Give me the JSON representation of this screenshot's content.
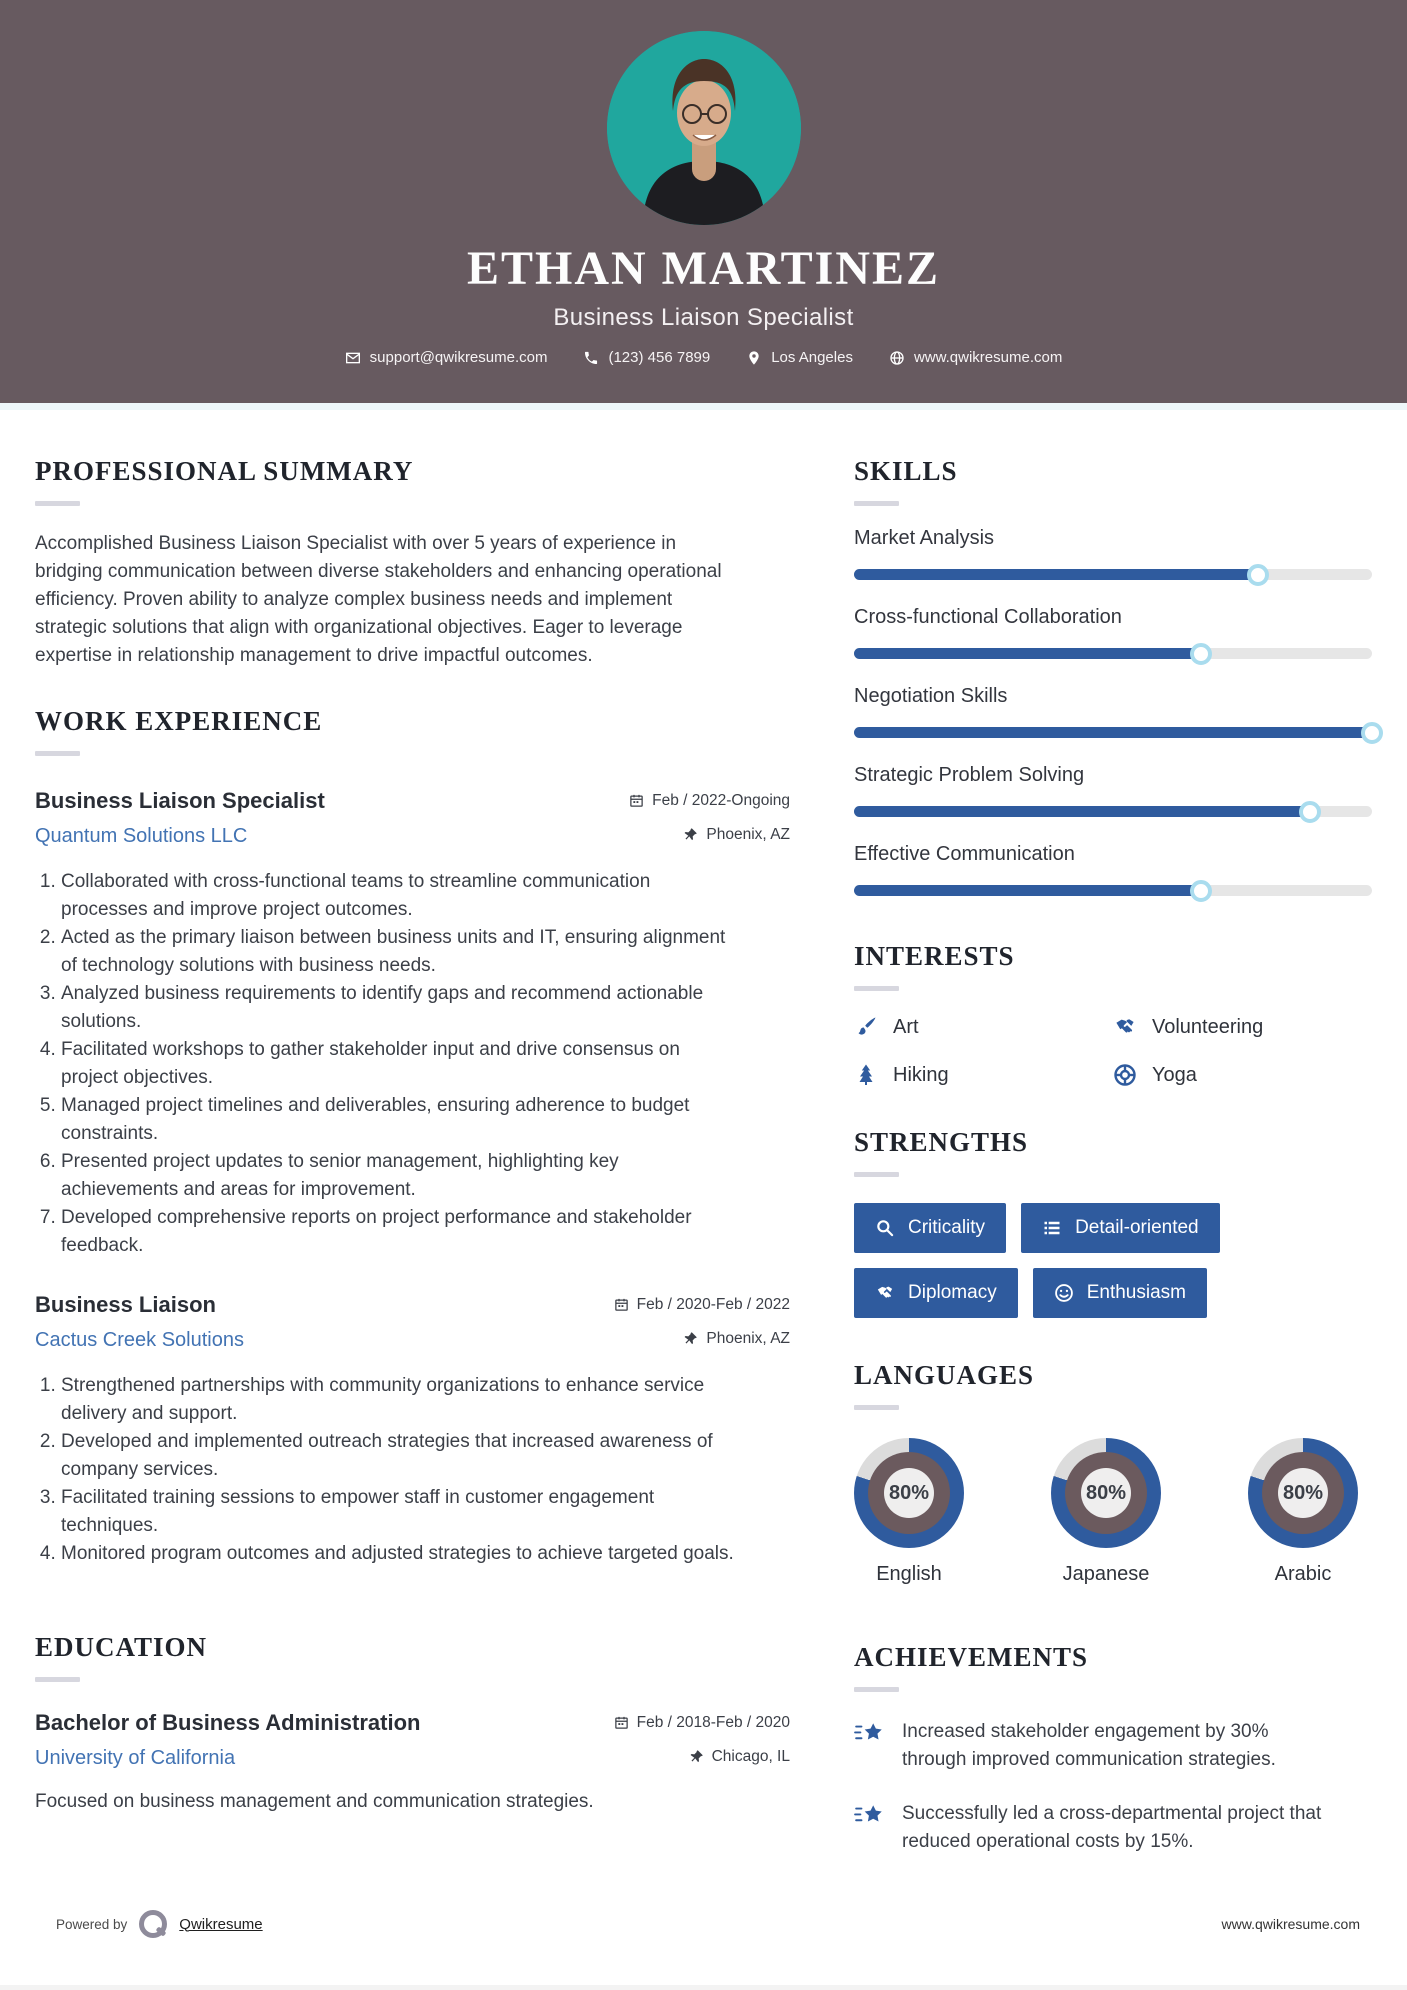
{
  "theme": {
    "accent": "#2f5b9e",
    "header_bg": "#675a60",
    "teal": "#20a79e",
    "link": "#4273b3",
    "track": "#e6e6e6",
    "donut_inner": "#6b5a5e",
    "donut_rest": "#dcdcdc"
  },
  "header": {
    "name": "ETHAN MARTINEZ",
    "title": "Business Liaison Specialist",
    "contact": {
      "email": "support@qwikresume.com",
      "phone": "(123) 456 7899",
      "location": "Los Angeles",
      "website": "www.qwikresume.com"
    }
  },
  "summary": {
    "heading": "PROFESSIONAL SUMMARY",
    "text": "Accomplished Business Liaison Specialist with over 5 years of experience in bridging communication between diverse stakeholders and enhancing operational efficiency. Proven ability to analyze complex business needs and implement strategic solutions that align with organizational objectives. Eager to leverage expertise in relationship management to drive impactful outcomes."
  },
  "work": {
    "heading": "WORK EXPERIENCE",
    "jobs": [
      {
        "title": "Business Liaison Specialist",
        "company": "Quantum Solutions LLC",
        "date": "Feb / 2022-Ongoing",
        "location": "Phoenix, AZ",
        "bullets": [
          "Collaborated with cross-functional teams to streamline communication processes and improve project outcomes.",
          "Acted as the primary liaison between business units and IT, ensuring alignment of technology solutions with business needs.",
          "Analyzed business requirements to identify gaps and recommend actionable solutions.",
          "Facilitated workshops to gather stakeholder input and drive consensus on project objectives.",
          "Managed project timelines and deliverables, ensuring adherence to budget constraints.",
          "Presented project updates to senior management, highlighting key achievements and areas for improvement.",
          "Developed comprehensive reports on project performance and stakeholder feedback."
        ]
      },
      {
        "title": "Business Liaison",
        "company": "Cactus Creek Solutions",
        "date": "Feb / 2020-Feb / 2022",
        "location": "Phoenix, AZ",
        "bullets": [
          "Strengthened partnerships with community organizations to enhance service delivery and support.",
          "Developed and implemented outreach strategies that increased awareness of company services.",
          "Facilitated training sessions to empower staff in customer engagement techniques.",
          "Monitored program outcomes and adjusted strategies to achieve targeted goals."
        ]
      }
    ]
  },
  "education": {
    "heading": "EDUCATION",
    "degree": "Bachelor of Business Administration",
    "school": "University of California",
    "date": "Feb / 2018-Feb / 2020",
    "location": "Chicago, IL",
    "description": "Focused on business management and communication strategies."
  },
  "skills": {
    "heading": "SKILLS",
    "items": [
      {
        "label": "Market Analysis",
        "percent": 78
      },
      {
        "label": "Cross-functional Collaboration",
        "percent": 67
      },
      {
        "label": "Negotiation Skills",
        "percent": 100
      },
      {
        "label": "Strategic Problem Solving",
        "percent": 88
      },
      {
        "label": "Effective Communication",
        "percent": 67
      }
    ]
  },
  "interests": {
    "heading": "INTERESTS",
    "items": [
      {
        "label": "Art",
        "icon": "paintbrush-icon"
      },
      {
        "label": "Volunteering",
        "icon": "handshake-icon"
      },
      {
        "label": "Hiking",
        "icon": "tree-icon"
      },
      {
        "label": "Yoga",
        "icon": "wheel-icon"
      }
    ]
  },
  "strengths": {
    "heading": "STRENGTHS",
    "items": [
      {
        "label": "Criticality",
        "icon": "search-icon"
      },
      {
        "label": "Detail-oriented",
        "icon": "list-icon"
      },
      {
        "label": "Diplomacy",
        "icon": "handshake-icon"
      },
      {
        "label": "Enthusiasm",
        "icon": "smiley-icon"
      }
    ]
  },
  "languages": {
    "heading": "LANGUAGES",
    "items": [
      {
        "label": "English",
        "percent": 80,
        "display": "80%"
      },
      {
        "label": "Japanese",
        "percent": 80,
        "display": "80%"
      },
      {
        "label": "Arabic",
        "percent": 80,
        "display": "80%"
      }
    ]
  },
  "achievements": {
    "heading": "ACHIEVEMENTS",
    "items": [
      {
        "text": "Increased stakeholder engagement by 30% through improved communication strategies."
      },
      {
        "text": "Successfully led a cross-departmental project that reduced operational costs by 15%."
      }
    ]
  },
  "footer": {
    "powered_by": "Powered by",
    "brand": "Qwikresume",
    "website": "www.qwikresume.com"
  }
}
